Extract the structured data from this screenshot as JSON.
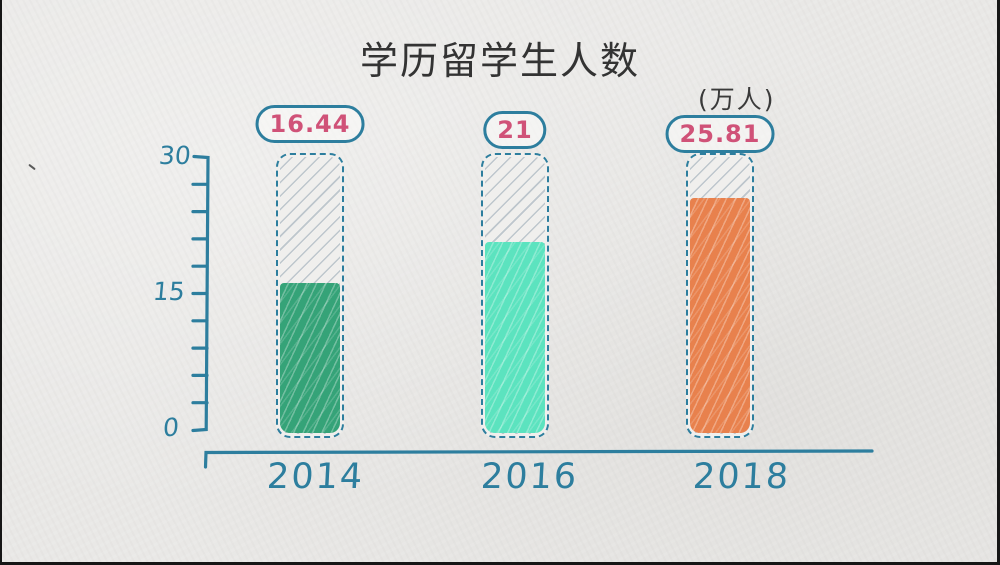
{
  "chart_data": {
    "type": "bar",
    "title": "学历留学生人数",
    "unit_label": "(万人)",
    "categories": [
      "2014",
      "2016",
      "2018"
    ],
    "values": [
      16.44,
      21,
      25.81
    ],
    "value_labels": [
      "16.44",
      "21",
      "25.81"
    ],
    "bar_fill_colors": [
      "#35a378",
      "#5ce3bf",
      "#e8814d"
    ],
    "ylim": [
      0,
      30
    ],
    "yticks": [
      0,
      15,
      30
    ],
    "ytick_labels": [
      "0",
      "15",
      "30"
    ],
    "minor_tick_step": 3,
    "xlabel": "",
    "ylabel": "",
    "grid": false,
    "legend": "none",
    "style": "hand-drawn crayon on paper",
    "colors": {
      "ink": "#2d7e9e",
      "value_text": "#d05278",
      "title_text": "#333333",
      "paper": "#e9e8e6",
      "bar_empty": "#f0efed"
    }
  }
}
